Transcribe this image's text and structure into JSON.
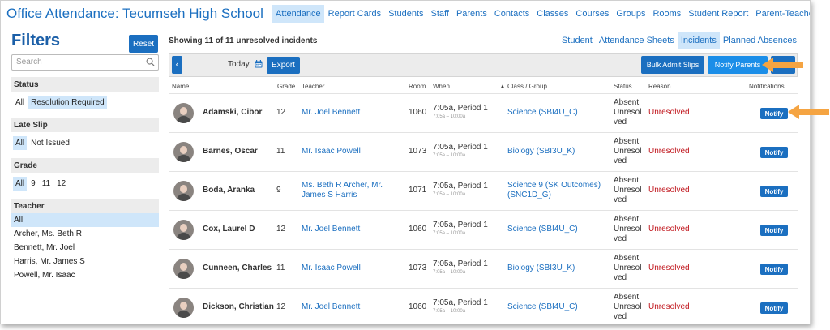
{
  "app": {
    "title": "Office Attendance: Tecumseh High School"
  },
  "topnav": [
    {
      "label": "Attendance",
      "active": true
    },
    {
      "label": "Report Cards"
    },
    {
      "label": "Students"
    },
    {
      "label": "Staff"
    },
    {
      "label": "Parents"
    },
    {
      "label": "Contacts"
    },
    {
      "label": "Classes"
    },
    {
      "label": "Courses"
    },
    {
      "label": "Groups"
    },
    {
      "label": "Rooms"
    },
    {
      "label": "Student Report"
    },
    {
      "label": "Parent-Teacher Interviews"
    }
  ],
  "filters": {
    "title": "Filters",
    "reset_label": "Reset",
    "search_placeholder": "Search",
    "status": {
      "label": "Status",
      "options": [
        "All",
        "Resolution Required"
      ]
    },
    "late_slip": {
      "label": "Late Slip",
      "options": [
        "All",
        "Not Issued"
      ]
    },
    "grade": {
      "label": "Grade",
      "options": [
        "All",
        "9",
        "11",
        "12"
      ]
    },
    "teacher": {
      "label": "Teacher",
      "options": [
        "All",
        "Archer, Ms. Beth R",
        "Bennett, Mr. Joel",
        "Harris, Mr. James S",
        "Powell, Mr. Isaac"
      ]
    }
  },
  "main": {
    "showing": "Showing 11 of 11 unresolved incidents",
    "subtabs": [
      {
        "label": "Student"
      },
      {
        "label": "Attendance Sheets"
      },
      {
        "label": "Incidents",
        "active": true
      },
      {
        "label": "Planned Absences"
      }
    ],
    "toolbar": {
      "today_label": "Today",
      "export_label": "Export",
      "bulk_label": "Bulk Admit Slips",
      "notify_parents_label": "Notify Parents"
    },
    "columns": {
      "name": "Name",
      "grade": "Grade",
      "teacher": "Teacher",
      "room": "Room",
      "when": "When",
      "class": "Class / Group",
      "status": "Status",
      "reason": "Reason",
      "notifications": "Notifications"
    },
    "rows": [
      {
        "name": "Adamski, Cibor",
        "grade": "12",
        "teacher": "Mr. Joel Bennett",
        "room": "1060",
        "when": "7:05a, Period 1",
        "when_sub": "7:05a – 10:00a",
        "class": "Science (SBI4U_C)",
        "status": "Absent Unresolved",
        "reason": "Unresolved",
        "notify": "Notify"
      },
      {
        "name": "Barnes, Oscar",
        "grade": "11",
        "teacher": "Mr. Isaac Powell",
        "room": "1073",
        "when": "7:05a, Period 1",
        "when_sub": "7:05a – 10:00a",
        "class": "Biology (SBI3U_K)",
        "status": "Absent Unresolved",
        "reason": "Unresolved",
        "notify": "Notify"
      },
      {
        "name": "Boda, Aranka",
        "grade": "9",
        "teacher": "Ms. Beth R Archer, Mr. James S Harris",
        "room": "1071",
        "when": "7:05a, Period 1",
        "when_sub": "7:05a – 10:00a",
        "class": "Science 9 (SK Outcomes) (SNC1D_G)",
        "status": "Absent Unresolved",
        "reason": "Unresolved",
        "notify": "Notify"
      },
      {
        "name": "Cox, Laurel D",
        "grade": "12",
        "teacher": "Mr. Joel Bennett",
        "room": "1060",
        "when": "7:05a, Period 1",
        "when_sub": "7:05a – 10:00a",
        "class": "Science (SBI4U_C)",
        "status": "Absent Unresolved",
        "reason": "Unresolved",
        "notify": "Notify"
      },
      {
        "name": "Cunneen, Charles",
        "grade": "11",
        "teacher": "Mr. Isaac Powell",
        "room": "1073",
        "when": "7:05a, Period 1",
        "when_sub": "7:05a – 10:00a",
        "class": "Biology (SBI3U_K)",
        "status": "Absent Unresolved",
        "reason": "Unresolved",
        "notify": "Notify"
      },
      {
        "name": "Dickson, Christian",
        "grade": "12",
        "teacher": "Mr. Joel Bennett",
        "room": "1060",
        "when": "7:05a, Period 1",
        "when_sub": "7:05a – 10:00a",
        "class": "Science (SBI4U_C)",
        "status": "Absent Unresolved",
        "reason": "Unresolved",
        "notify": "Notify"
      }
    ]
  },
  "colors": {
    "accent": "#1b6fc0",
    "highlight": "#cfe6fa",
    "unresolved": "#c0141b",
    "arrow": "#f5a442"
  }
}
